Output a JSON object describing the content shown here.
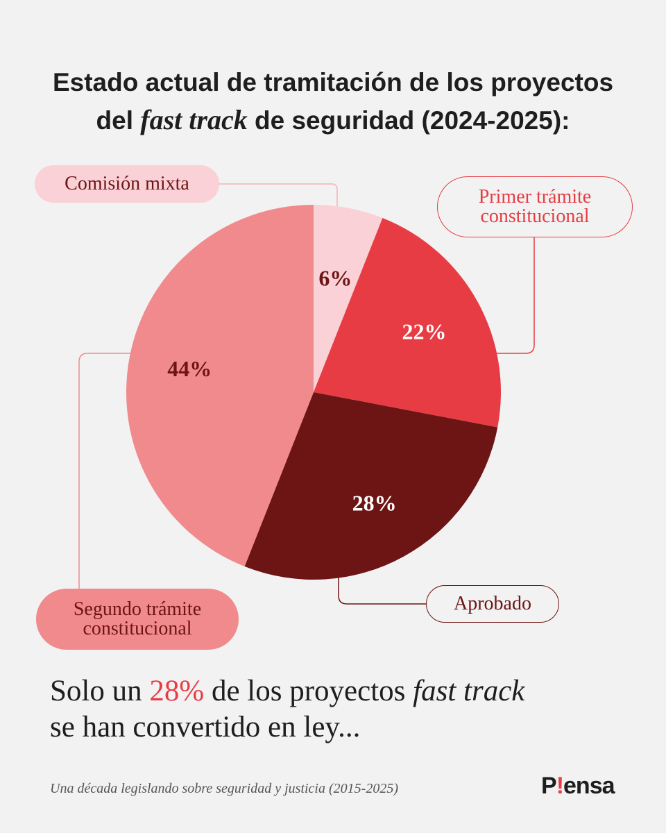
{
  "header": {
    "title_before": "Estado actual de tramitación de los proyectos",
    "title_mid_prefix": "del ",
    "title_italic": "fast track",
    "title_after": " de seguridad (2024-2025):"
  },
  "chart_data": {
    "type": "pie",
    "title": "Estado actual de tramitación de los proyectos del fast track de seguridad (2024-2025):",
    "unit": "%",
    "slices": [
      {
        "label": "Comisión mixta",
        "value": 6,
        "color": "#f9d1d6",
        "text_color": "#6d1414"
      },
      {
        "label": "Primer trámite constitucional",
        "value": 22,
        "color": "#e73c44",
        "text_color": "#ffffff"
      },
      {
        "label": "Aprobado",
        "value": 28,
        "color": "#6d1414",
        "text_color": "#ffffff"
      },
      {
        "label": "Segundo trámite constitucional",
        "value": 44,
        "color": "#f08a8d",
        "text_color": "#6d1414"
      }
    ]
  },
  "labels": {
    "comision": "Comisión mixta",
    "primer_line1": "Primer trámite",
    "primer_line2": "constitucional",
    "segundo_line1": "Segundo trámite",
    "segundo_line2": "constitucional",
    "aprobado": "Aprobado"
  },
  "headline": {
    "part1": "Solo un ",
    "highlight": "28%",
    "part2": " de los proyectos ",
    "italic": "fast track",
    "line2": "se han convertido en ley..."
  },
  "footer": {
    "source": "Una década legislando sobre seguridad y justicia (2015-2025)",
    "logo_p": "P",
    "logo_bang": "!",
    "logo_rest": "ensa"
  },
  "colors": {
    "background": "#f2f2f2",
    "accent": "#e73c44",
    "dark": "#6d1414"
  }
}
